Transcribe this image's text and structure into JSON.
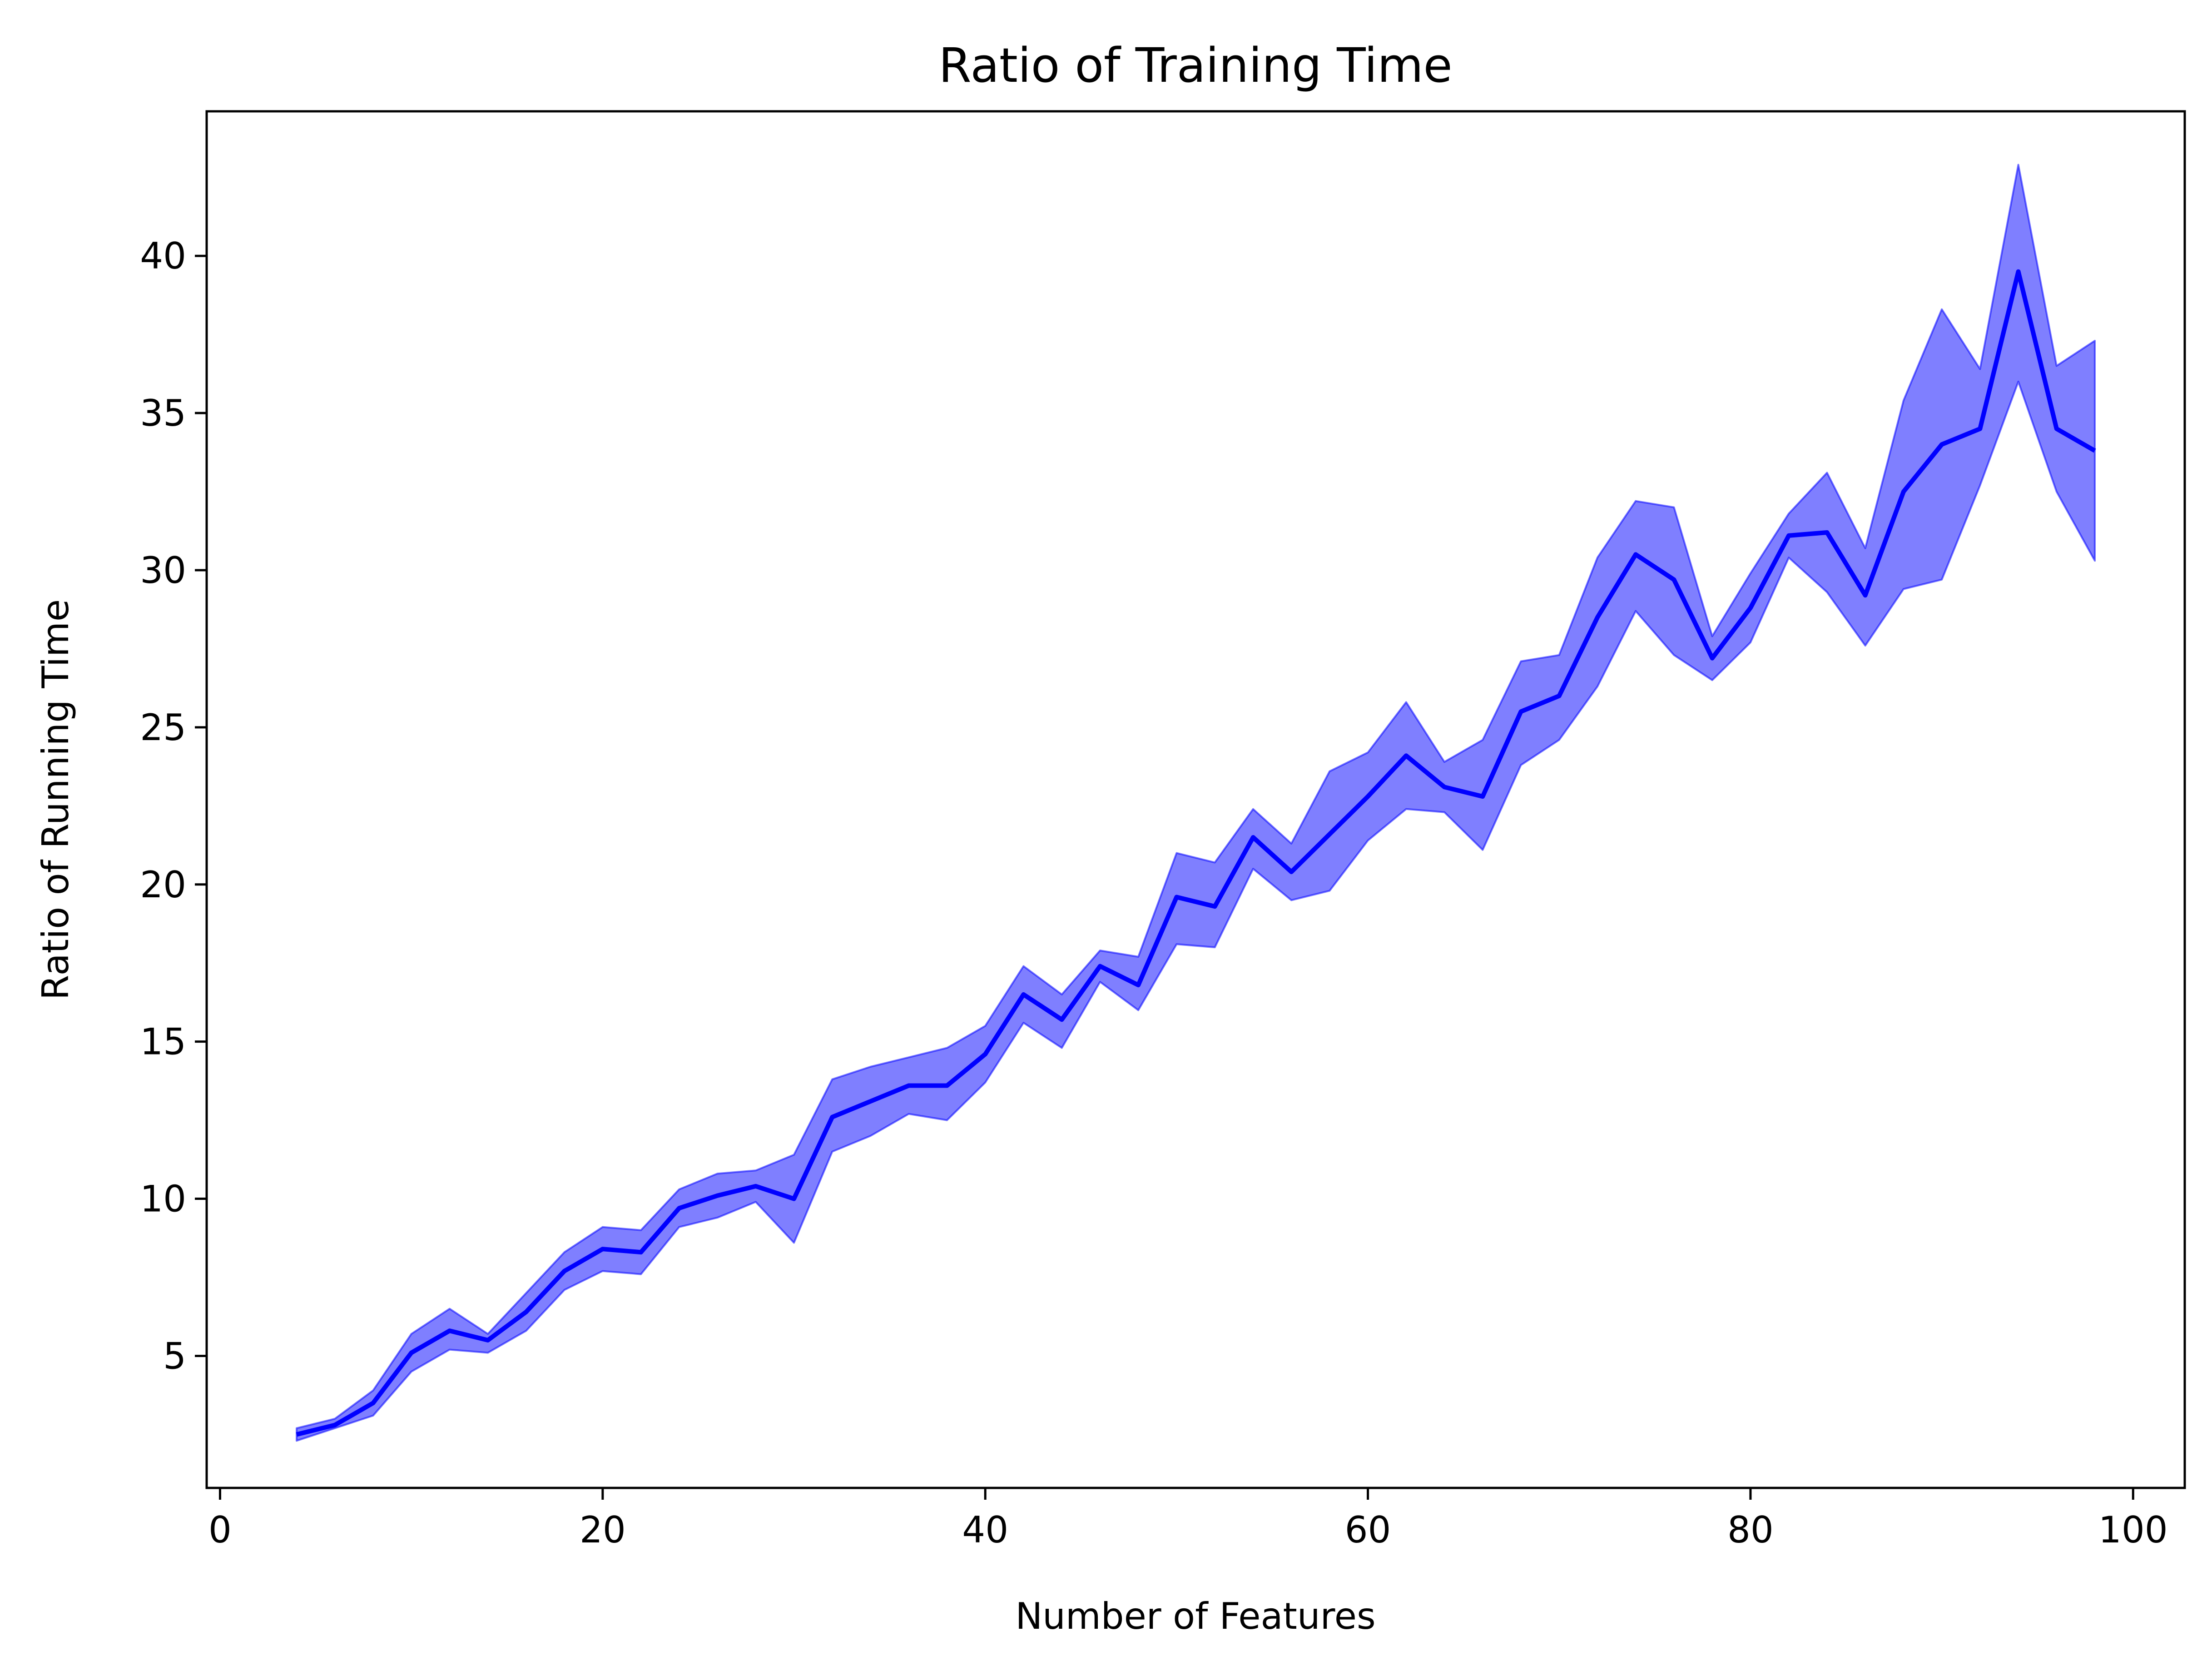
{
  "chart_data": {
    "type": "line",
    "title": "Ratio of Training Time",
    "xlabel": "Number of Features",
    "ylabel": "Ratio of Running Time",
    "xlim": [
      -0.7,
      102.7
    ],
    "ylim": [
      0.8,
      44.6
    ],
    "xticks": [
      0,
      20,
      40,
      60,
      80,
      100
    ],
    "yticks": [
      5,
      10,
      15,
      20,
      25,
      30,
      35,
      40
    ],
    "grid": false,
    "legend": "none",
    "line_color": "#0000ff",
    "band_color": "#0000ff",
    "band_opacity": 0.5,
    "x": [
      4,
      6,
      8,
      10,
      12,
      14,
      16,
      18,
      20,
      22,
      24,
      26,
      28,
      30,
      32,
      34,
      36,
      38,
      40,
      42,
      44,
      46,
      48,
      50,
      52,
      54,
      56,
      58,
      60,
      62,
      64,
      66,
      68,
      70,
      72,
      74,
      76,
      78,
      80,
      82,
      84,
      86,
      88,
      90,
      92,
      94,
      96,
      98
    ],
    "series": [
      {
        "values": [
          2.5,
          2.8,
          3.5,
          5.1,
          5.8,
          5.5,
          6.4,
          7.7,
          8.4,
          8.3,
          9.7,
          10.1,
          10.4,
          10.0,
          12.6,
          13.1,
          13.6,
          13.6,
          14.6,
          16.5,
          15.7,
          17.4,
          16.8,
          19.6,
          19.3,
          21.5,
          20.4,
          21.6,
          22.8,
          24.1,
          23.1,
          22.8,
          25.5,
          26.0,
          28.5,
          30.5,
          29.7,
          27.2,
          28.8,
          31.1,
          31.2,
          29.2,
          32.5,
          34.0,
          34.5,
          39.5,
          34.5,
          33.8
        ],
        "lower": [
          2.3,
          2.7,
          3.1,
          4.5,
          5.2,
          5.1,
          5.8,
          7.1,
          7.7,
          7.6,
          9.1,
          9.4,
          9.9,
          8.6,
          11.5,
          12.0,
          12.7,
          12.5,
          13.7,
          15.6,
          14.8,
          16.9,
          16.0,
          18.1,
          18.0,
          20.5,
          19.5,
          19.8,
          21.4,
          22.4,
          22.3,
          21.1,
          23.8,
          24.6,
          26.3,
          28.7,
          27.3,
          26.5,
          27.7,
          30.4,
          29.3,
          27.6,
          29.4,
          29.7,
          32.7,
          36.0,
          32.5,
          30.3
        ],
        "upper": [
          2.7,
          3.0,
          3.9,
          5.7,
          6.5,
          5.7,
          7.0,
          8.3,
          9.1,
          9.0,
          10.3,
          10.8,
          10.9,
          11.4,
          13.8,
          14.2,
          14.5,
          14.8,
          15.5,
          17.4,
          16.5,
          17.9,
          17.7,
          21.0,
          20.7,
          22.4,
          21.3,
          23.6,
          24.2,
          25.8,
          23.9,
          24.6,
          27.1,
          27.3,
          30.4,
          32.2,
          32.0,
          27.9,
          29.9,
          31.8,
          33.1,
          30.7,
          35.4,
          38.3,
          36.4,
          42.9,
          36.5,
          37.3
        ]
      }
    ]
  }
}
